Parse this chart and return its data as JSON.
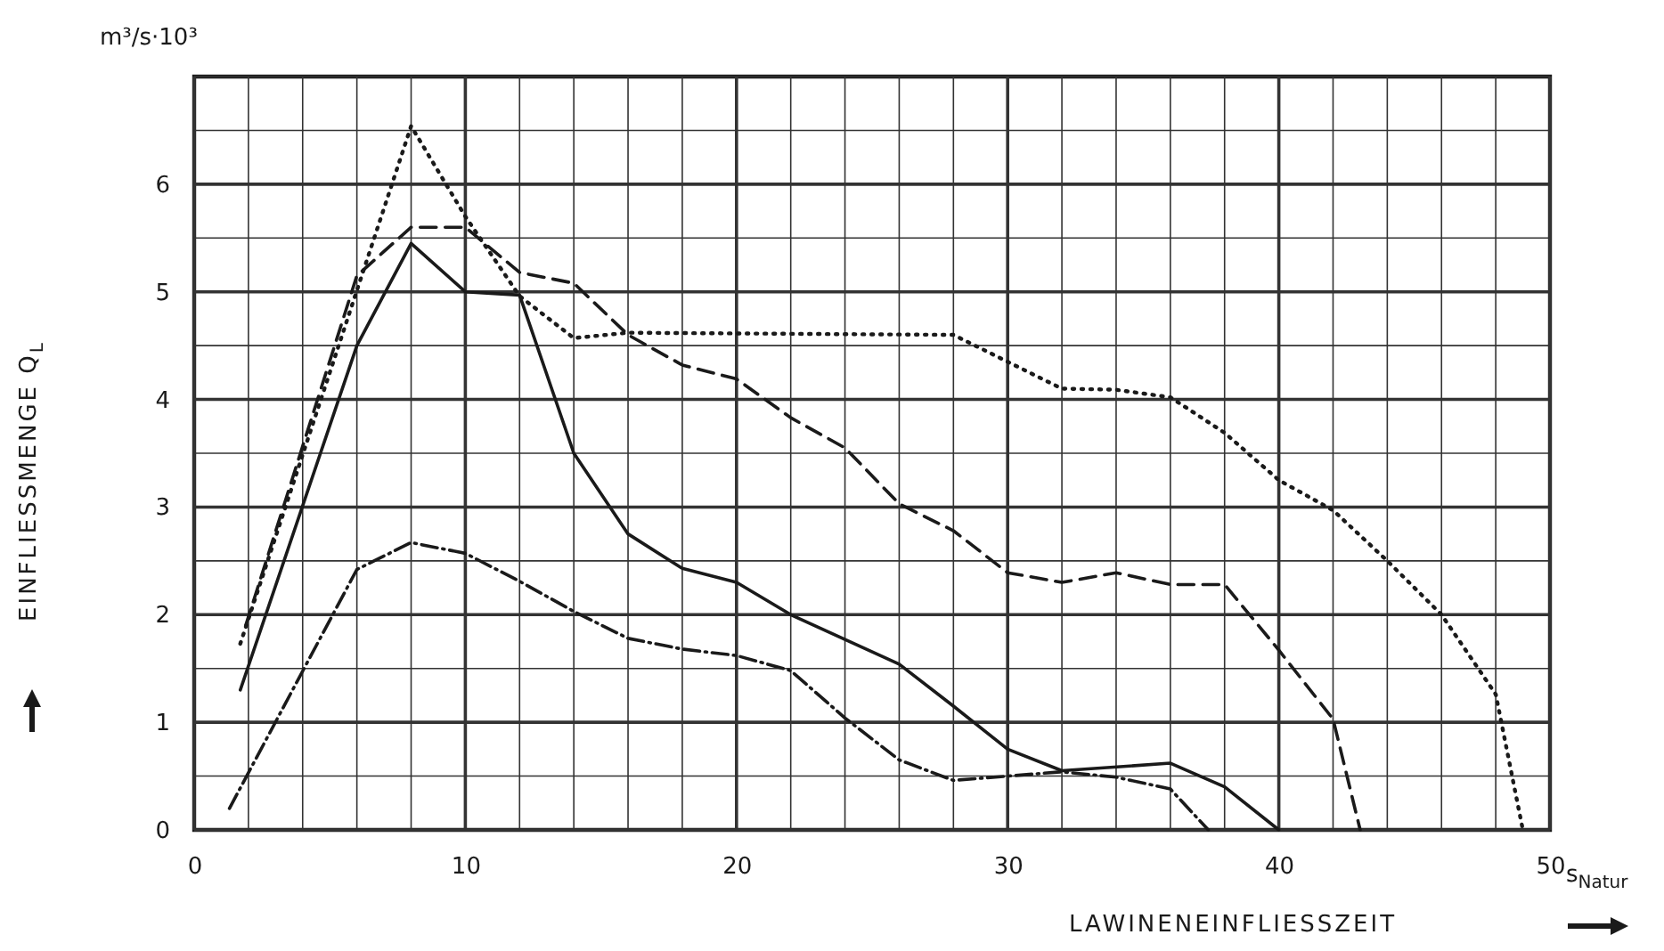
{
  "chart_data": {
    "type": "line",
    "xlabel": "LAWINENEINFLIESSZEIT",
    "ylabel": "EINFLIESSMENGE Q$_{L}$",
    "annotations": [
      "m³/s·10³",
      "s$_{Natur}$"
    ],
    "xlim": [
      0,
      50
    ],
    "ylim": [
      0,
      7
    ],
    "xticks": [
      0,
      {
        "value": 2,
        "label": null
      },
      {
        "value": 4,
        "label": null
      },
      {
        "value": 6,
        "label": null
      },
      {
        "value": 8,
        "label": null
      },
      10,
      {
        "value": 12,
        "label": null
      },
      {
        "value": 14,
        "label": null
      },
      {
        "value": 16,
        "label": null
      },
      {
        "value": 18,
        "label": null
      },
      20,
      {
        "value": 22,
        "label": null
      },
      {
        "value": 24,
        "label": null
      },
      {
        "value": 26,
        "label": null
      },
      {
        "value": 28,
        "label": null
      },
      30,
      {
        "value": 32,
        "label": null
      },
      {
        "value": 34,
        "label": null
      },
      {
        "value": 36,
        "label": null
      },
      {
        "value": 38,
        "label": null
      },
      40,
      {
        "value": 42,
        "label": null
      },
      {
        "value": 44,
        "label": null
      },
      {
        "value": 46,
        "label": null
      },
      {
        "value": 48,
        "label": null
      },
      50
    ],
    "yticks": [
      0,
      {
        "value": 0.5,
        "label": null
      },
      1,
      {
        "value": 1.5,
        "label": null
      },
      2,
      {
        "value": 2.5,
        "label": null
      },
      3,
      {
        "value": 3.5,
        "label": null
      },
      4,
      {
        "value": 4.5,
        "label": null
      },
      5,
      {
        "value": 5.5,
        "label": null
      },
      6,
      {
        "value": 6.5,
        "label": null
      },
      {
        "value": 7,
        "label": null
      }
    ],
    "grid": true,
    "marker": "none",
    "series": [
      {
        "color": "#1a1a1a",
        "line_style": "solid",
        "x": [
          1.7,
          6,
          8,
          10,
          12,
          14,
          16,
          18,
          20,
          22,
          24,
          26,
          28,
          30,
          32,
          36,
          38,
          40
        ],
        "values": [
          1.3,
          4.5,
          5.45,
          5.0,
          4.97,
          3.5,
          2.75,
          2.43,
          2.3,
          2.0,
          1.77,
          1.54,
          1.15,
          0.75,
          0.55,
          0.62,
          0.4,
          0
        ]
      },
      {
        "color": "#1a1a1a",
        "line_style": "dashed",
        "x": [
          1.9,
          6,
          8,
          10,
          12,
          14,
          16,
          18,
          20,
          22,
          24,
          26,
          28,
          30,
          32,
          34,
          36,
          38,
          40,
          42,
          43
        ],
        "values": [
          1.9,
          5.15,
          5.6,
          5.6,
          5.18,
          5.08,
          4.6,
          4.32,
          4.19,
          3.83,
          3.55,
          3.03,
          2.78,
          2.39,
          2.3,
          2.39,
          2.28,
          2.28,
          1.67,
          1.03,
          0
        ]
      },
      {
        "color": "#1a1a1a",
        "line_style": "dotted",
        "x": [
          1.7,
          8,
          10,
          12,
          14,
          16,
          28,
          30,
          32,
          34,
          36,
          38,
          40,
          42,
          44,
          46,
          48,
          49
        ],
        "values": [
          1.73,
          6.54,
          5.7,
          4.96,
          4.57,
          4.62,
          4.6,
          4.35,
          4.1,
          4.09,
          4.02,
          3.69,
          3.25,
          2.97,
          2.5,
          2.0,
          1.26,
          0
        ]
      },
      {
        "color": "#1a1a1a",
        "line_style": "dashdot",
        "x": [
          1.3,
          6,
          8,
          10,
          12,
          14,
          16,
          18,
          20,
          22,
          24,
          26,
          28,
          30,
          32,
          34,
          36,
          37.4
        ],
        "values": [
          0.2,
          2.42,
          2.67,
          2.57,
          2.31,
          2.03,
          1.78,
          1.68,
          1.62,
          1.48,
          1.04,
          0.65,
          0.46,
          0.5,
          0.54,
          0.49,
          0.38,
          0
        ]
      }
    ]
  }
}
